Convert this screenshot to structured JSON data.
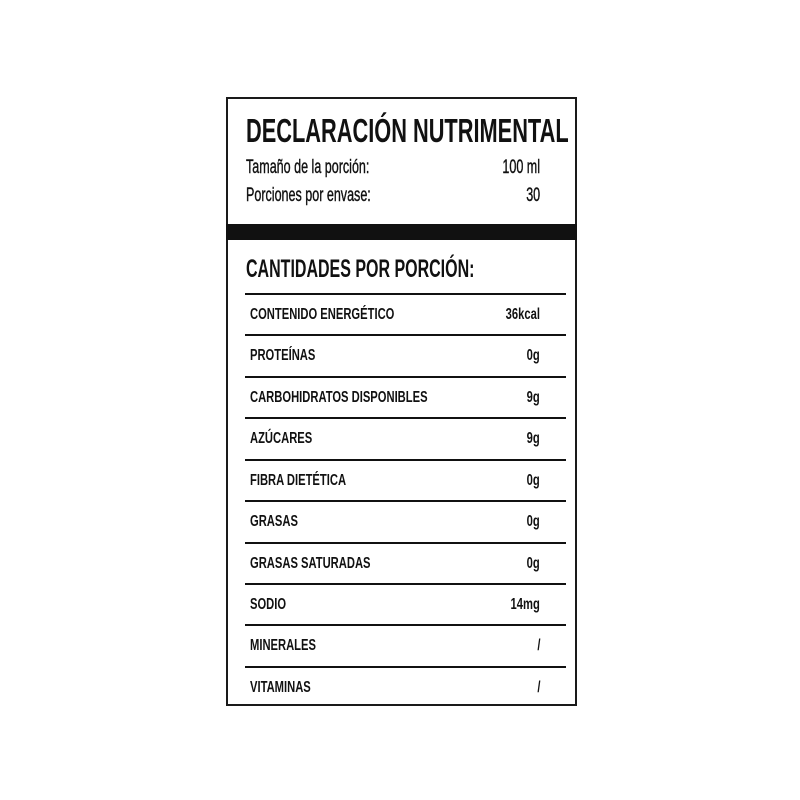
{
  "label": {
    "title": "DECLARACIÓN NUTRIMENTAL",
    "serving_size_label": "Tamaño de la porción:",
    "serving_size_value": "100 ml",
    "servings_label": "Porciones por envase:",
    "servings_value": "30",
    "section_heading": "CANTIDADES POR PORCIÓN:",
    "rows": [
      {
        "name": "CONTENIDO ENERGÉTICO",
        "value": "36kcal"
      },
      {
        "name": "PROTEÍNAS",
        "value": "0g"
      },
      {
        "name": "CARBOHIDRATOS DISPONIBLES",
        "value": "9g"
      },
      {
        "name": "AZÚCARES",
        "value": "9g"
      },
      {
        "name": "FIBRA DIETÉTICA",
        "value": "0g"
      },
      {
        "name": "GRASAS",
        "value": "0g"
      },
      {
        "name": "GRASAS SATURADAS",
        "value": "0g"
      },
      {
        "name": "SODIO",
        "value": "14mg"
      },
      {
        "name": "MINERALES",
        "value": "/"
      },
      {
        "name": "VITAMINAS",
        "value": "/"
      }
    ]
  }
}
